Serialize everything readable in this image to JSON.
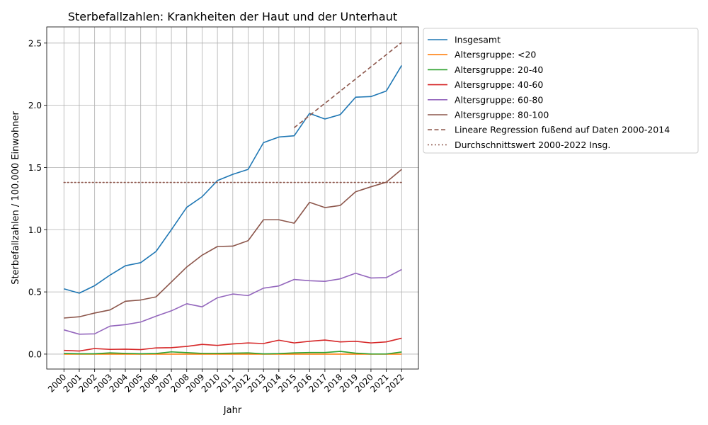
{
  "chart_data": {
    "type": "line",
    "title": "Sterbefallzahlen: Krankheiten der Haut und der Unterhaut",
    "xlabel": "Jahr",
    "ylabel": "Sterbefallzahlen / 100.000 Einwohner",
    "x": [
      2000,
      2001,
      2002,
      2003,
      2004,
      2005,
      2006,
      2007,
      2008,
      2009,
      2010,
      2011,
      2012,
      2013,
      2014,
      2015,
      2016,
      2017,
      2018,
      2019,
      2020,
      2021,
      2022
    ],
    "xtick_labels": [
      "2000",
      "2001",
      "2002",
      "2003",
      "2004",
      "2005",
      "2006",
      "2007",
      "2008",
      "2009",
      "2010",
      "2011",
      "2012",
      "2013",
      "2014",
      "2015",
      "2016",
      "2017",
      "2018",
      "2019",
      "2020",
      "2021",
      "2022"
    ],
    "ylim": [
      -0.12,
      2.63
    ],
    "yticks": [
      0.0,
      0.5,
      1.0,
      1.5,
      2.0,
      2.5
    ],
    "ytick_labels": [
      "0.0",
      "0.5",
      "1.0",
      "1.5",
      "2.0",
      "2.5"
    ],
    "grid": true,
    "legend_position": "outside-upper-right",
    "series": [
      {
        "name": "Insgesamt",
        "color": "#1f77b4",
        "style": "solid",
        "values": [
          0.525,
          0.49,
          0.55,
          0.635,
          0.71,
          0.735,
          0.825,
          1.0,
          1.18,
          1.265,
          1.395,
          1.445,
          1.485,
          1.7,
          1.745,
          1.755,
          1.935,
          1.89,
          1.925,
          2.065,
          2.07,
          2.115,
          2.32
        ]
      },
      {
        "name": "Altersgruppe: <20",
        "color": "#ff7f0e",
        "style": "solid",
        "values": [
          0.0,
          0.0,
          0.0,
          0.0,
          0.0,
          0.0,
          0.0,
          0.0,
          0.0,
          0.0,
          0.0,
          0.0,
          0.0,
          0.0,
          0.0,
          0.0,
          0.0,
          0.0,
          0.0,
          0.0,
          0.0,
          0.0,
          0.0
        ]
      },
      {
        "name": "Altersgruppe: 20-40",
        "color": "#2ca02c",
        "style": "solid",
        "values": [
          0.005,
          0.003,
          0.003,
          0.01,
          0.006,
          0.003,
          0.005,
          0.018,
          0.012,
          0.006,
          0.006,
          0.008,
          0.01,
          0.002,
          0.004,
          0.01,
          0.013,
          0.013,
          0.022,
          0.008,
          0.001,
          0.001,
          0.017
        ]
      },
      {
        "name": "Altersgruppe: 40-60",
        "color": "#d62728",
        "style": "solid",
        "values": [
          0.03,
          0.025,
          0.045,
          0.038,
          0.04,
          0.036,
          0.05,
          0.052,
          0.062,
          0.078,
          0.07,
          0.082,
          0.09,
          0.085,
          0.112,
          0.09,
          0.103,
          0.113,
          0.098,
          0.103,
          0.09,
          0.098,
          0.128
        ]
      },
      {
        "name": "Altersgruppe: 60-80",
        "color": "#9467bd",
        "style": "solid",
        "values": [
          0.195,
          0.16,
          0.163,
          0.225,
          0.237,
          0.258,
          0.305,
          0.348,
          0.405,
          0.38,
          0.453,
          0.483,
          0.47,
          0.53,
          0.548,
          0.6,
          0.59,
          0.585,
          0.605,
          0.65,
          0.612,
          0.615,
          0.68
        ]
      },
      {
        "name": "Altersgruppe: 80-100",
        "color": "#8c564b",
        "style": "solid",
        "values": [
          0.29,
          0.3,
          0.33,
          0.355,
          0.425,
          0.435,
          0.46,
          0.58,
          0.7,
          0.795,
          0.865,
          0.868,
          0.912,
          1.08,
          1.08,
          1.052,
          1.22,
          1.178,
          1.195,
          1.305,
          1.345,
          1.382,
          1.485
        ]
      },
      {
        "name": "Lineare Regression fußend auf Daten 2000-2014",
        "color": "#8c564b",
        "style": "dashed",
        "x": [
          2015,
          2022
        ],
        "values": [
          1.82,
          2.505
        ]
      },
      {
        "name": "Durchschnittswert 2000-2022 Insg.",
        "color": "#8c564b",
        "style": "dotted",
        "x": [
          2000,
          2022
        ],
        "values": [
          1.38,
          1.38
        ]
      }
    ]
  }
}
